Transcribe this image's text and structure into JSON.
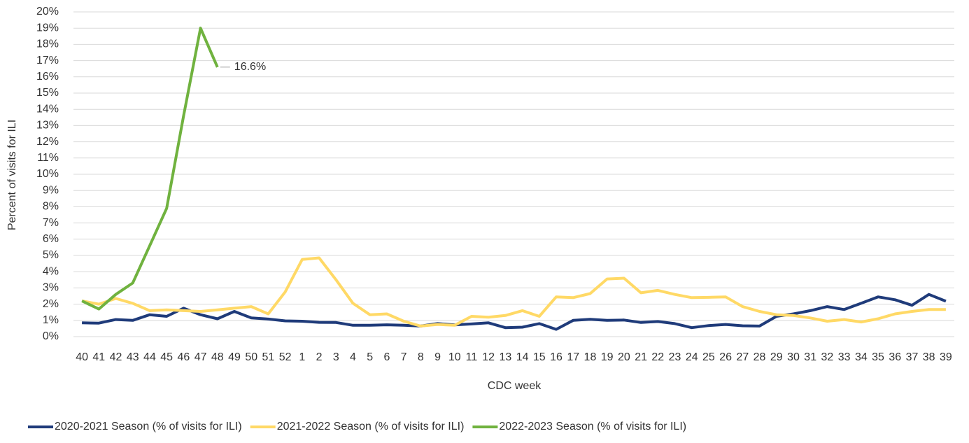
{
  "chart_data": {
    "type": "line",
    "y_label": "Percent of visits for ILI",
    "x_label": "CDC week",
    "categories": [
      "40",
      "41",
      "42",
      "43",
      "44",
      "45",
      "46",
      "47",
      "48",
      "49",
      "50",
      "51",
      "52",
      "1",
      "2",
      "3",
      "4",
      "5",
      "6",
      "7",
      "8",
      "9",
      "10",
      "11",
      "12",
      "13",
      "14",
      "15",
      "16",
      "17",
      "18",
      "19",
      "20",
      "21",
      "22",
      "23",
      "24",
      "25",
      "26",
      "27",
      "28",
      "29",
      "30",
      "31",
      "32",
      "33",
      "34",
      "35",
      "36",
      "37",
      "38",
      "39"
    ],
    "ylim": [
      0,
      20
    ],
    "yticks": [
      {
        "value": 0,
        "label": "0%"
      },
      {
        "value": 1,
        "label": "1%"
      },
      {
        "value": 2,
        "label": "2%"
      },
      {
        "value": 3,
        "label": "3%"
      },
      {
        "value": 4,
        "label": "4%"
      },
      {
        "value": 5,
        "label": "5%"
      },
      {
        "value": 6,
        "label": "6%"
      },
      {
        "value": 7,
        "label": "7%"
      },
      {
        "value": 8,
        "label": "8%"
      },
      {
        "value": 9,
        "label": "9%"
      },
      {
        "value": 10,
        "label": "10%"
      },
      {
        "value": 11,
        "label": "11%"
      },
      {
        "value": 12,
        "label": "12%"
      },
      {
        "value": 13,
        "label": "13%"
      },
      {
        "value": 14,
        "label": "14%"
      },
      {
        "value": 15,
        "label": "15%"
      },
      {
        "value": 16,
        "label": "16%"
      },
      {
        "value": 17,
        "label": "17%"
      },
      {
        "value": 18,
        "label": "18%"
      },
      {
        "value": 19,
        "label": "19%"
      },
      {
        "value": 20,
        "label": "20%"
      }
    ],
    "grid": true,
    "legend": "bottom",
    "series": [
      {
        "name": "2020-2021 Season (% of visits for ILI)",
        "color": "#1f3b7a",
        "values": [
          0.85,
          0.83,
          1.05,
          1.0,
          1.35,
          1.25,
          1.75,
          1.35,
          1.1,
          1.55,
          1.15,
          1.08,
          0.97,
          0.95,
          0.88,
          0.87,
          0.7,
          0.7,
          0.73,
          0.7,
          0.65,
          0.8,
          0.72,
          0.78,
          0.85,
          0.55,
          0.58,
          0.8,
          0.45,
          1.0,
          1.07,
          1.0,
          1.02,
          0.87,
          0.93,
          0.8,
          0.55,
          0.68,
          0.75,
          0.67,
          0.65,
          1.25,
          1.4,
          1.6,
          1.85,
          1.67,
          2.05,
          2.45,
          2.27,
          1.93,
          2.6,
          2.18
        ]
      },
      {
        "name": "2021-2022 Season (% of visits for ILI)",
        "color": "#ffd966",
        "values": [
          2.2,
          2.0,
          2.35,
          2.05,
          1.6,
          1.65,
          1.6,
          1.55,
          1.65,
          1.75,
          1.85,
          1.4,
          2.75,
          4.75,
          4.85,
          3.5,
          2.05,
          1.35,
          1.4,
          0.95,
          0.65,
          0.75,
          0.7,
          1.25,
          1.2,
          1.3,
          1.6,
          1.25,
          2.45,
          2.4,
          2.65,
          3.55,
          3.6,
          2.7,
          2.85,
          2.6,
          2.4,
          2.42,
          2.45,
          1.85,
          1.55,
          1.35,
          1.3,
          1.15,
          0.95,
          1.05,
          0.9,
          1.1,
          1.4,
          1.55,
          1.67,
          1.67
        ]
      },
      {
        "name": "2022-2023 Season (% of visits for ILI)",
        "color": "#70b23f",
        "values": [
          2.2,
          1.7,
          2.6,
          3.3,
          5.6,
          7.9,
          13.6,
          19.0,
          16.6,
          null,
          null,
          null,
          null,
          null,
          null,
          null,
          null,
          null,
          null,
          null,
          null,
          null,
          null,
          null,
          null,
          null,
          null,
          null,
          null,
          null,
          null,
          null,
          null,
          null,
          null,
          null,
          null,
          null,
          null,
          null,
          null,
          null,
          null,
          null,
          null,
          null,
          null,
          null,
          null,
          null,
          null,
          null
        ],
        "value_labels": [
          null,
          null,
          null,
          null,
          null,
          null,
          null,
          null,
          "16.6%",
          null,
          null,
          null,
          null,
          null,
          null,
          null,
          null,
          null,
          null,
          null,
          null,
          null,
          null,
          null,
          null,
          null,
          null,
          null,
          null,
          null,
          null,
          null,
          null,
          null,
          null,
          null,
          null,
          null,
          null,
          null,
          null,
          null,
          null,
          null,
          null,
          null,
          null,
          null,
          null,
          null,
          null,
          null
        ]
      }
    ]
  }
}
